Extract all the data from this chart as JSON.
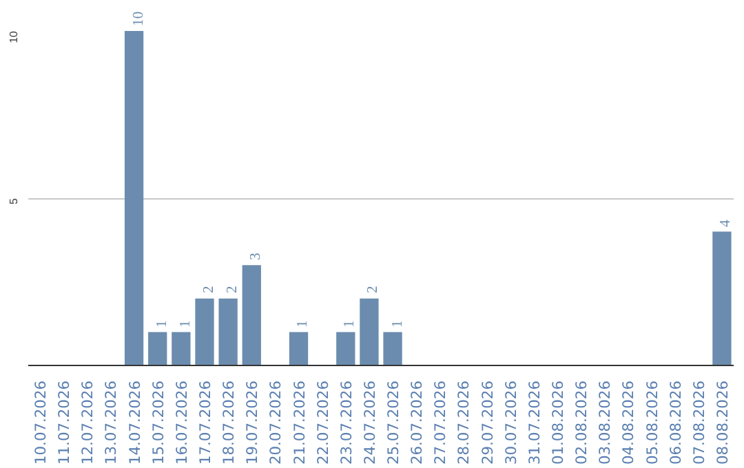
{
  "chart_data": {
    "type": "bar",
    "categories": [
      "10.07.2026",
      "11.07.2026",
      "12.07.2026",
      "13.07.2026",
      "14.07.2026",
      "15.07.2026",
      "16.07.2026",
      "17.07.2026",
      "18.07.2026",
      "19.07.2026",
      "20.07.2026",
      "21.07.2026",
      "22.07.2026",
      "23.07.2026",
      "24.07.2026",
      "25.07.2026",
      "26.07.2026",
      "27.07.2026",
      "28.07.2026",
      "29.07.2026",
      "30.07.2026",
      "31.07.2026",
      "01.08.2026",
      "02.08.2026",
      "03.08.2026",
      "04.08.2026",
      "05.08.2026",
      "06.08.2026",
      "07.08.2026",
      "08.08.2026"
    ],
    "values": [
      0,
      0,
      0,
      0,
      10,
      1,
      1,
      2,
      2,
      3,
      0,
      1,
      0,
      1,
      2,
      1,
      0,
      0,
      0,
      0,
      0,
      0,
      0,
      0,
      0,
      0,
      0,
      0,
      0,
      4
    ],
    "value_labels": [
      null,
      null,
      null,
      null,
      "10",
      "1",
      "1",
      "2",
      "2",
      "3",
      null,
      "1",
      null,
      "1",
      "2",
      "1",
      null,
      null,
      null,
      null,
      null,
      null,
      null,
      null,
      null,
      null,
      null,
      null,
      null,
      "4"
    ],
    "color": "#6b8cae",
    "ylim": [
      0,
      10
    ],
    "yticks": [
      5,
      10
    ],
    "grid": "y"
  }
}
